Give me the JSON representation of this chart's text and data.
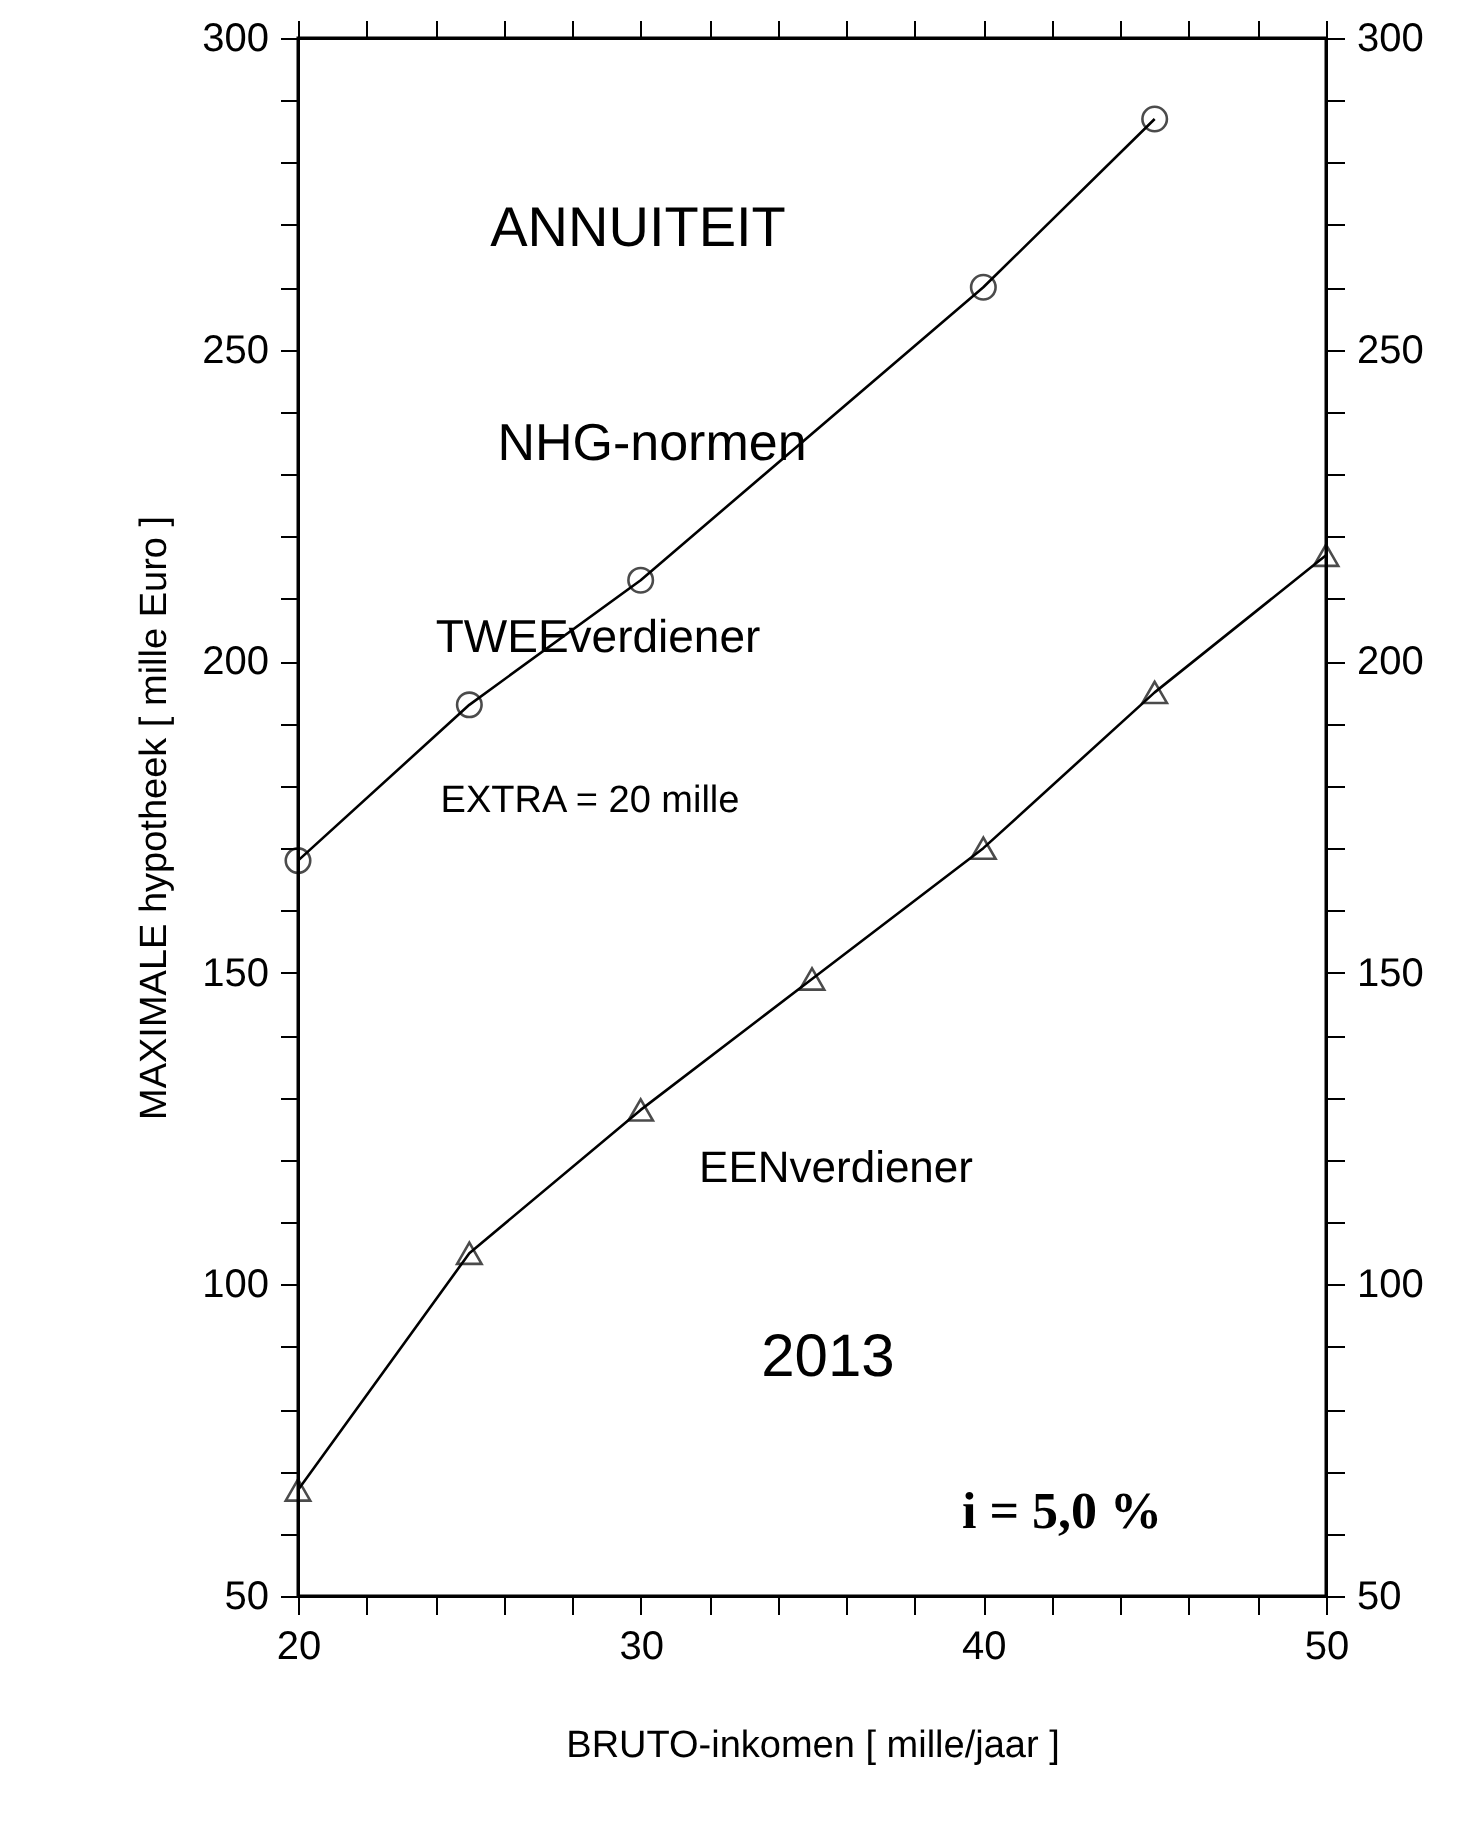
{
  "chart_data": {
    "type": "line",
    "xlabel": "BRUTO-inkomen  [  mille/jaar  ]",
    "ylabel": "MAXIMALE hypotheek  [  mille Euro  ]",
    "annotations": [
      "ANNUITEIT",
      "NHG-normen",
      "EXTRA  =  20  mille",
      "2013",
      "i  =  5,0  %"
    ],
    "line_style": "solid",
    "grid": false,
    "xlim": [
      20,
      50
    ],
    "xticks": [
      20,
      {
        "value": 22,
        "label": null
      },
      {
        "value": 24,
        "label": null
      },
      {
        "value": 26,
        "label": null
      },
      {
        "value": 28,
        "label": null
      },
      30,
      {
        "value": 32,
        "label": null
      },
      {
        "value": 34,
        "label": null
      },
      {
        "value": 36,
        "label": null
      },
      {
        "value": 38,
        "label": null
      },
      40,
      {
        "value": 42,
        "label": null
      },
      {
        "value": 44,
        "label": null
      },
      {
        "value": 46,
        "label": null
      },
      {
        "value": 48,
        "label": null
      },
      50
    ],
    "ylim": [
      50,
      300
    ],
    "yticks": [
      50,
      {
        "value": 60,
        "label": null
      },
      {
        "value": 70,
        "label": null
      },
      {
        "value": 80,
        "label": null
      },
      {
        "value": 90,
        "label": null
      },
      100,
      {
        "value": 110,
        "label": null
      },
      {
        "value": 120,
        "label": null
      },
      {
        "value": 130,
        "label": null
      },
      {
        "value": 140,
        "label": null
      },
      150,
      {
        "value": 160,
        "label": null
      },
      {
        "value": 170,
        "label": null
      },
      {
        "value": 180,
        "label": null
      },
      {
        "value": 190,
        "label": null
      },
      200,
      {
        "value": 210,
        "label": null
      },
      {
        "value": 220,
        "label": null
      },
      {
        "value": 230,
        "label": null
      },
      {
        "value": 240,
        "label": null
      },
      250,
      {
        "value": 260,
        "label": null
      },
      {
        "value": 270,
        "label": null
      },
      {
        "value": 280,
        "label": null
      },
      {
        "value": 290,
        "label": null
      },
      300
    ],
    "y2lim": [
      50,
      300
    ],
    "y2ticks": [
      50,
      {
        "value": 60,
        "label": null
      },
      {
        "value": 70,
        "label": null
      },
      {
        "value": 80,
        "label": null
      },
      {
        "value": 90,
        "label": null
      },
      100,
      {
        "value": 110,
        "label": null
      },
      {
        "value": 120,
        "label": null
      },
      {
        "value": 130,
        "label": null
      },
      {
        "value": 140,
        "label": null
      },
      150,
      {
        "value": 160,
        "label": null
      },
      {
        "value": 170,
        "label": null
      },
      {
        "value": 180,
        "label": null
      },
      {
        "value": 190,
        "label": null
      },
      200,
      {
        "value": 210,
        "label": null
      },
      {
        "value": 220,
        "label": null
      },
      {
        "value": 230,
        "label": null
      },
      {
        "value": 240,
        "label": null
      },
      250,
      {
        "value": 260,
        "label": null
      },
      {
        "value": 270,
        "label": null
      },
      {
        "value": 280,
        "label": null
      },
      {
        "value": 290,
        "label": null
      },
      300
    ],
    "series": [
      {
        "name": "TWEEverdiener",
        "color": "#000000",
        "marker": "circle",
        "x": [
          20,
          25,
          30,
          40,
          45
        ],
        "values": [
          168,
          193,
          213,
          260,
          287
        ]
      },
      {
        "name": "EENverdiener",
        "color": "#000000",
        "marker": "triangle",
        "x": [
          20,
          25,
          30,
          35,
          40,
          45,
          50
        ],
        "values": [
          67,
          105,
          128,
          149,
          170,
          195,
          217
        ]
      }
    ]
  }
}
